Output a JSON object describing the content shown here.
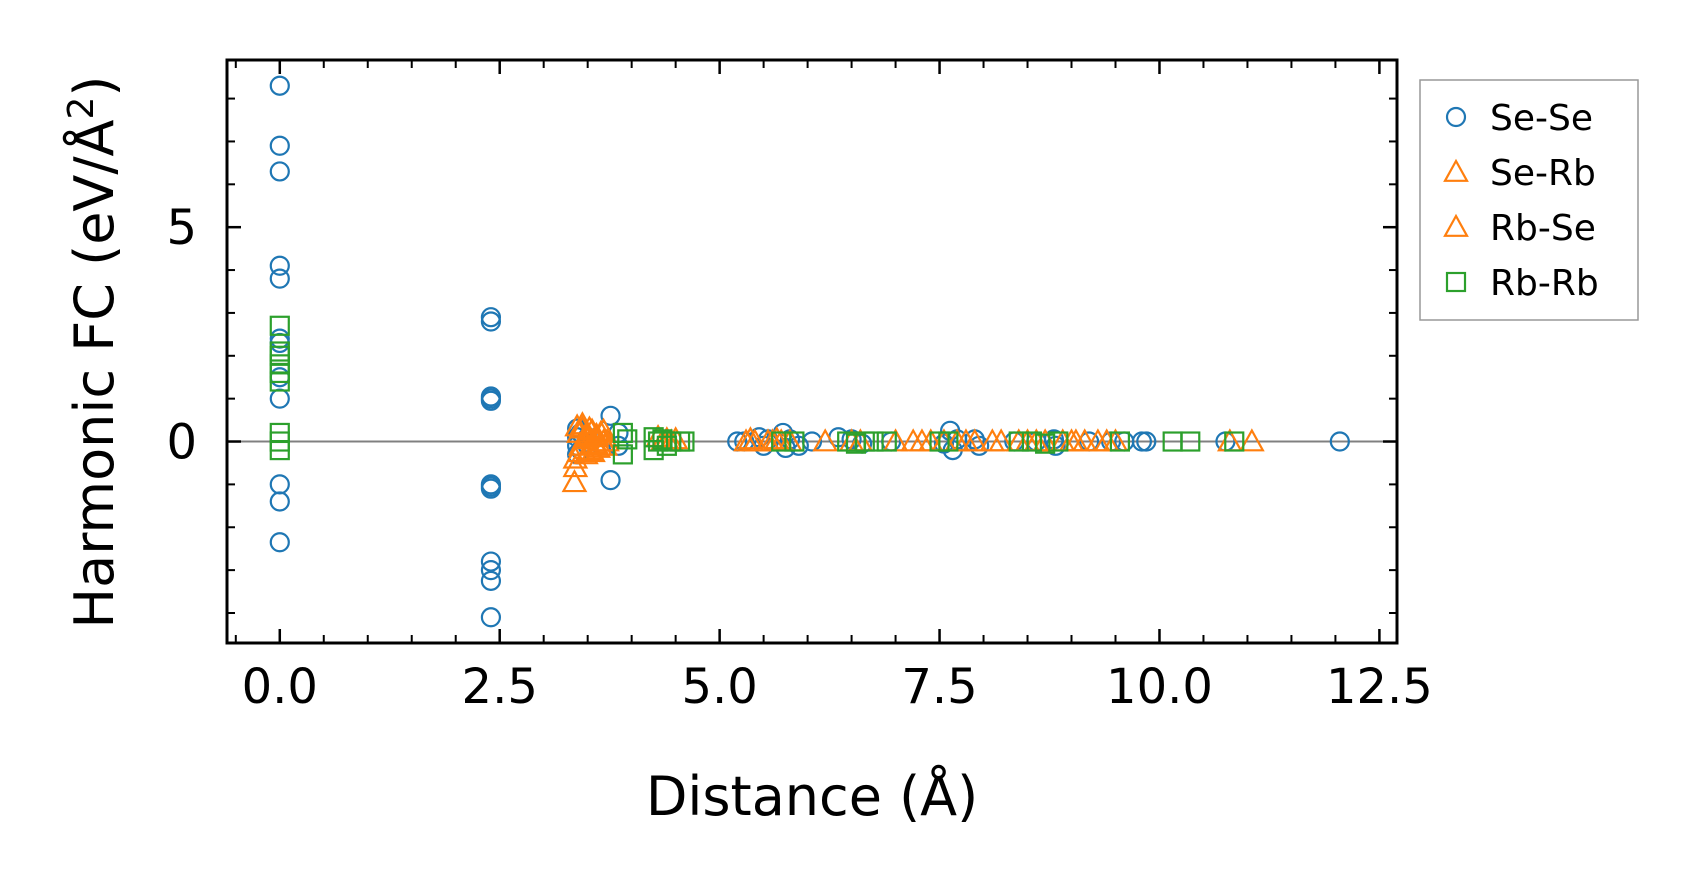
{
  "chart_data": {
    "type": "scatter",
    "xlabel": "Distance (Å)",
    "ylabel_main": "Harmonic FC (eV/Å",
    "ylabel_sup": "2",
    "ylabel_close": ")",
    "xlim": [
      -0.6,
      12.7
    ],
    "ylim": [
      -4.7,
      8.9
    ],
    "xticks": [
      0.0,
      2.5,
      5.0,
      7.5,
      10.0,
      12.5
    ],
    "xtick_labels": [
      "0.0",
      "2.5",
      "5.0",
      "7.5",
      "10.0",
      "12.5"
    ],
    "yticks": [
      0,
      5
    ],
    "ytick_labels": [
      "0",
      "5"
    ],
    "zero_line": true,
    "legend_position": "outside-right",
    "series": [
      {
        "name": "Se-Se",
        "marker": "circle",
        "color": "#1f77b4",
        "points": [
          [
            0,
            8.3
          ],
          [
            0,
            6.9
          ],
          [
            0,
            6.3
          ],
          [
            0,
            4.1
          ],
          [
            0,
            3.8
          ],
          [
            0,
            2.4
          ],
          [
            0,
            2.3
          ],
          [
            0,
            1.5
          ],
          [
            0,
            1.0
          ],
          [
            0,
            -1.0
          ],
          [
            0,
            -1.4
          ],
          [
            0,
            -2.35
          ],
          [
            2.4,
            2.9
          ],
          [
            2.4,
            2.8
          ],
          [
            2.4,
            1.05
          ],
          [
            2.4,
            1.0
          ],
          [
            2.4,
            0.95
          ],
          [
            2.4,
            -1.0
          ],
          [
            2.4,
            -1.05
          ],
          [
            2.4,
            -1.1
          ],
          [
            2.4,
            -2.8
          ],
          [
            2.4,
            -3.0
          ],
          [
            2.4,
            -3.25
          ],
          [
            2.4,
            -4.1
          ],
          [
            3.38,
            0.3
          ],
          [
            3.38,
            0.1
          ],
          [
            3.38,
            -0.1
          ],
          [
            3.38,
            -0.3
          ],
          [
            3.42,
            0.2
          ],
          [
            3.42,
            -0.2
          ],
          [
            3.5,
            0.1
          ],
          [
            3.5,
            -0.1
          ],
          [
            3.76,
            0.6
          ],
          [
            3.76,
            -0.9
          ],
          [
            3.85,
            0.2
          ],
          [
            3.85,
            -0.1
          ],
          [
            5.2,
            0.0
          ],
          [
            5.28,
            0.0
          ],
          [
            5.45,
            0.1
          ],
          [
            5.5,
            -0.1
          ],
          [
            5.55,
            0.05
          ],
          [
            5.72,
            0.2
          ],
          [
            5.75,
            -0.15
          ],
          [
            5.8,
            0.05
          ],
          [
            5.9,
            -0.1
          ],
          [
            6.05,
            0.0
          ],
          [
            6.35,
            0.1
          ],
          [
            6.5,
            0.05
          ],
          [
            6.62,
            -0.05
          ],
          [
            6.95,
            0.0
          ],
          [
            7.55,
            -0.05
          ],
          [
            7.62,
            0.25
          ],
          [
            7.65,
            -0.2
          ],
          [
            7.7,
            0.05
          ],
          [
            7.9,
            0.05
          ],
          [
            7.95,
            -0.1
          ],
          [
            8.35,
            0.0
          ],
          [
            8.6,
            0.0
          ],
          [
            8.8,
            0.05
          ],
          [
            8.82,
            -0.1
          ],
          [
            9.2,
            0.0
          ],
          [
            9.45,
            0.0
          ],
          [
            9.6,
            0.0
          ],
          [
            9.8,
            0.0
          ],
          [
            9.85,
            0.0
          ],
          [
            10.75,
            0.0
          ],
          [
            12.05,
            0.0
          ]
        ]
      },
      {
        "name": "Se-Rb",
        "marker": "triangle",
        "color": "#ff7f0e",
        "points": [
          [
            3.35,
            -0.95
          ],
          [
            3.36,
            -0.6
          ],
          [
            3.38,
            0.35
          ],
          [
            3.4,
            0.2
          ],
          [
            3.42,
            -0.1
          ],
          [
            3.44,
            0.4
          ],
          [
            3.46,
            0.05
          ],
          [
            3.48,
            -0.3
          ],
          [
            3.5,
            0.15
          ],
          [
            3.52,
            -0.2
          ],
          [
            3.55,
            0.25
          ],
          [
            3.58,
            -0.05
          ],
          [
            3.6,
            0.1
          ],
          [
            3.62,
            -0.15
          ],
          [
            3.65,
            0.2
          ],
          [
            3.68,
            0.0
          ],
          [
            3.7,
            -0.1
          ],
          [
            4.3,
            0.1
          ],
          [
            4.4,
            0.05
          ],
          [
            4.5,
            0.05
          ],
          [
            5.3,
            0.0
          ],
          [
            5.35,
            0.05
          ],
          [
            5.55,
            0.0
          ],
          [
            5.65,
            0.05
          ],
          [
            5.7,
            0.0
          ],
          [
            5.8,
            0.0
          ],
          [
            6.2,
            0.0
          ],
          [
            6.5,
            0.0
          ],
          [
            7.0,
            0.0
          ],
          [
            7.2,
            0.0
          ],
          [
            7.4,
            0.0
          ],
          [
            7.7,
            0.0
          ],
          [
            7.8,
            0.0
          ],
          [
            8.1,
            0.0
          ],
          [
            8.2,
            0.0
          ],
          [
            8.5,
            0.0
          ],
          [
            8.6,
            0.0
          ],
          [
            8.9,
            0.0
          ],
          [
            9.05,
            0.0
          ],
          [
            9.15,
            0.0
          ],
          [
            9.3,
            0.0
          ],
          [
            9.5,
            0.0
          ],
          [
            10.8,
            0.0
          ],
          [
            11.05,
            0.0
          ]
        ]
      },
      {
        "name": "Rb-Se",
        "marker": "triangle",
        "color": "#ff7f0e",
        "points": [
          [
            3.36,
            -0.4
          ],
          [
            3.4,
            -0.25
          ],
          [
            3.44,
            0.3
          ],
          [
            3.48,
            0.1
          ],
          [
            3.52,
            0.3
          ],
          [
            3.56,
            -0.25
          ],
          [
            3.6,
            0.15
          ],
          [
            3.64,
            -0.1
          ],
          [
            3.68,
            0.25
          ],
          [
            3.72,
            0.0
          ],
          [
            4.35,
            0.0
          ],
          [
            4.45,
            0.0
          ],
          [
            5.4,
            0.0
          ],
          [
            5.6,
            0.0
          ],
          [
            6.6,
            0.0
          ],
          [
            7.3,
            0.0
          ],
          [
            7.55,
            0.0
          ],
          [
            7.9,
            0.0
          ],
          [
            8.4,
            0.0
          ],
          [
            8.7,
            0.0
          ],
          [
            9.0,
            0.0
          ],
          [
            9.4,
            0.0
          ]
        ]
      },
      {
        "name": "Rb-Rb",
        "marker": "square",
        "color": "#2ca02c",
        "points": [
          [
            0,
            2.7
          ],
          [
            0,
            2.1
          ],
          [
            0,
            2.0
          ],
          [
            0,
            1.8
          ],
          [
            0,
            1.6
          ],
          [
            0,
            1.4
          ],
          [
            0,
            0.2
          ],
          [
            0,
            0.0
          ],
          [
            0,
            -0.2
          ],
          [
            3.9,
            0.2
          ],
          [
            3.9,
            -0.3
          ],
          [
            3.95,
            0.05
          ],
          [
            4.25,
            0.1
          ],
          [
            4.25,
            -0.2
          ],
          [
            4.3,
            0.0
          ],
          [
            4.35,
            0.05
          ],
          [
            4.4,
            -0.1
          ],
          [
            4.45,
            0.0
          ],
          [
            4.55,
            0.0
          ],
          [
            4.6,
            0.0
          ],
          [
            5.7,
            0.0
          ],
          [
            5.85,
            0.0
          ],
          [
            6.45,
            0.0
          ],
          [
            6.55,
            -0.05
          ],
          [
            6.65,
            0.0
          ],
          [
            6.75,
            0.0
          ],
          [
            6.9,
            0.0
          ],
          [
            7.5,
            0.0
          ],
          [
            7.6,
            0.0
          ],
          [
            8.4,
            0.0
          ],
          [
            8.55,
            0.0
          ],
          [
            8.7,
            -0.05
          ],
          [
            8.85,
            0.0
          ],
          [
            9.55,
            0.0
          ],
          [
            10.15,
            0.0
          ],
          [
            10.35,
            0.0
          ],
          [
            10.85,
            0.0
          ]
        ]
      }
    ]
  }
}
